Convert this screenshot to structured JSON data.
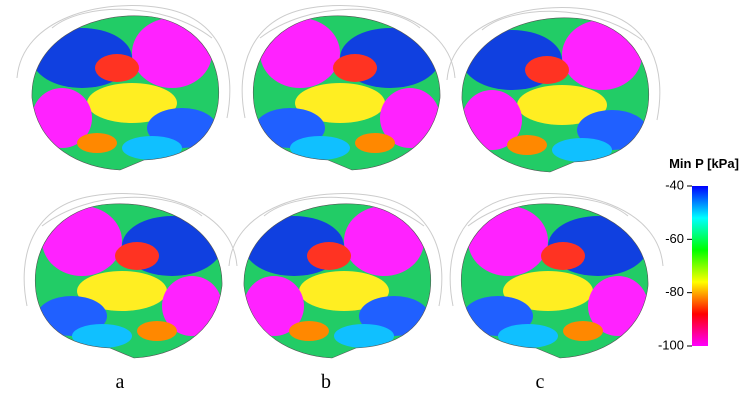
{
  "panels": [
    {
      "label": "a"
    },
    {
      "label": "b"
    },
    {
      "label": "c"
    }
  ],
  "colorbar": {
    "title": "Min P [kPa]",
    "range": [
      -100,
      -40
    ],
    "ticks": [
      -40,
      -60,
      -80,
      -100
    ],
    "colors": [
      "#ff00ff",
      "#ff0000",
      "#ffff00",
      "#00ff00",
      "#00ffff",
      "#0000ff"
    ]
  }
}
